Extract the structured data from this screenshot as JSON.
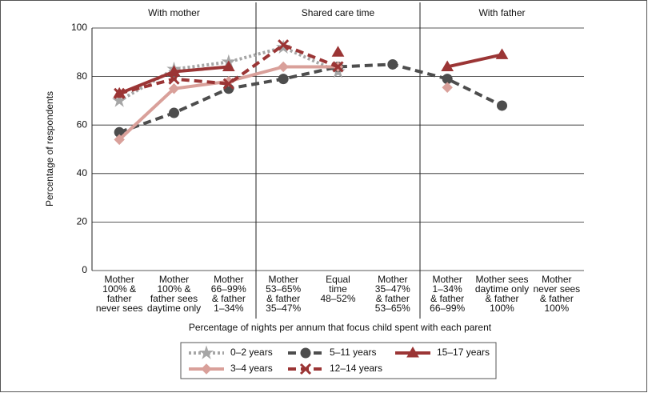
{
  "chart_data": {
    "type": "line",
    "y_label": "Percentage of respondents",
    "x_label": "Percentage of nights per annum that focus child spent with each parent",
    "sections": [
      "With mother",
      "Shared care time",
      "With father"
    ],
    "categories": [
      [
        "Mother",
        "100% &",
        "father",
        "never sees"
      ],
      [
        "Mother",
        "100% &",
        "father sees",
        "daytime only"
      ],
      [
        "Mother",
        "66–99%",
        "& father",
        "1–34%"
      ],
      [
        "Mother",
        "53–65%",
        "& father",
        "35–47%"
      ],
      [
        "Equal",
        "time",
        "48–52%"
      ],
      [
        "Mother",
        "35–47%",
        "& father",
        "53–65%"
      ],
      [
        "Mother",
        "1–34%",
        "& father",
        "66–99%"
      ],
      [
        "Mother sees",
        "daytime only",
        "& father",
        "100%"
      ],
      [
        "Mother",
        "never sees",
        "& father",
        "100%"
      ]
    ],
    "ylim": [
      0,
      100
    ],
    "yticks": [
      0,
      20,
      40,
      60,
      80,
      100
    ],
    "grid": true,
    "series": [
      {
        "name": "0–2 years",
        "color": "#a6a6a6",
        "style": "dotted",
        "marker": "star",
        "values": [
          70,
          83,
          86,
          92,
          82,
          null,
          null,
          null,
          null
        ]
      },
      {
        "name": "5–11 years",
        "color": "#4d4d4d",
        "style": "dashed",
        "marker": "circle",
        "values": [
          57,
          65,
          75,
          79,
          84,
          85,
          79,
          68,
          null
        ]
      },
      {
        "name": "15–17 years",
        "color": "#9b3535",
        "style": "solid",
        "marker": "triangle",
        "values": [
          73,
          82,
          84,
          null,
          90,
          null,
          84,
          89,
          null
        ]
      },
      {
        "name": "3–4 years",
        "color": "#d9a09a",
        "style": "solid",
        "marker": "diamond",
        "values": [
          54,
          75,
          78,
          84,
          84,
          null,
          75.5,
          null,
          null
        ]
      },
      {
        "name": "12–14 years",
        "color": "#9b3535",
        "style": "dashed",
        "marker": "x",
        "values": [
          73,
          79,
          77,
          93,
          84,
          null,
          null,
          null,
          null
        ]
      }
    ]
  }
}
